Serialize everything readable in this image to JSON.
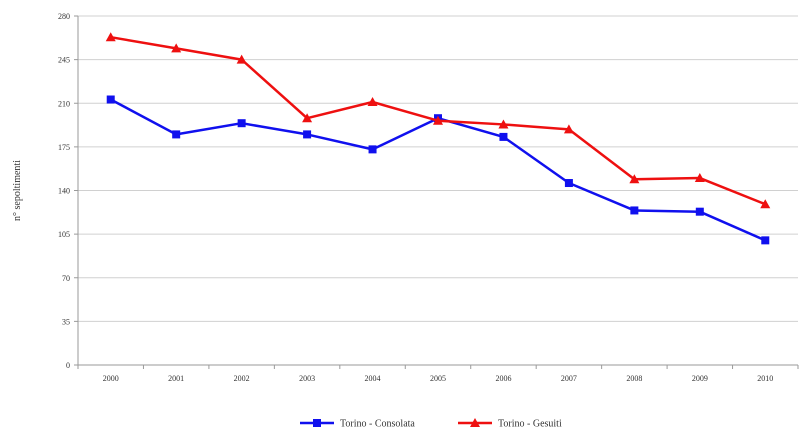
{
  "chart_data": {
    "type": "line",
    "title": "",
    "xlabel": "",
    "ylabel": "n° sepoltimenti",
    "categories": [
      "2000",
      "2001",
      "2002",
      "2003",
      "2004",
      "2005",
      "2006",
      "2007",
      "2008",
      "2009",
      "2010"
    ],
    "ylim": [
      0,
      280
    ],
    "yticks": [
      0,
      35,
      70,
      105,
      140,
      175,
      210,
      245,
      280
    ],
    "ytick_labels": [
      "0",
      "35",
      "70",
      "105",
      "140",
      "175",
      "210",
      "245",
      "280"
    ],
    "grid": true,
    "legend_position": "bottom",
    "series": [
      {
        "name": "Torino - Consolata",
        "color": "#1010ee",
        "marker": "square",
        "values": [
          213,
          185,
          194,
          185,
          173,
          198,
          183,
          146,
          124,
          123,
          100
        ]
      },
      {
        "name": "Torino - Gesuiti",
        "color": "#ee1010",
        "marker": "triangle",
        "values": [
          263,
          254,
          245,
          198,
          211,
          196,
          193,
          189,
          149,
          150,
          129
        ]
      }
    ]
  }
}
